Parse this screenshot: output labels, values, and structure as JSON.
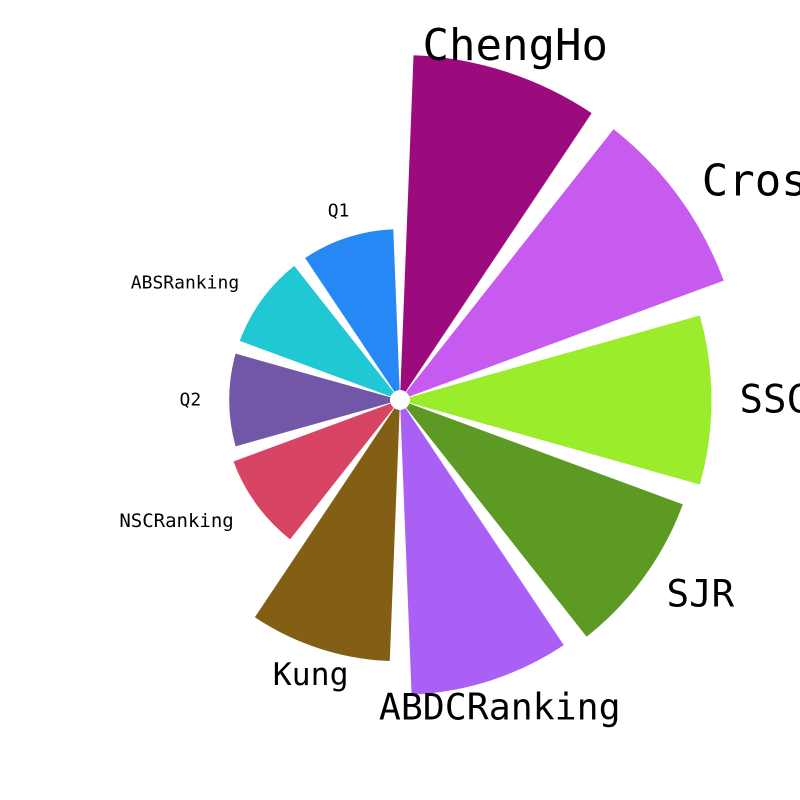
{
  "chart_data": {
    "type": "bar",
    "subtype": "polar",
    "title": "",
    "xlabel": "",
    "ylabel": "",
    "categories": [
      "ChengHo",
      "CrossRef",
      "SSCI",
      "SJR",
      "ABDCRanking",
      "Kung",
      "NSCRanking",
      "Q2",
      "ABSRanking",
      "Q1"
    ],
    "values": [
      100,
      100,
      90,
      87,
      85,
      75,
      50,
      48,
      48,
      48
    ],
    "colors": [
      "#9b0b7e",
      "#c75bf0",
      "#9bed2b",
      "#5c9a24",
      "#aa60f5",
      "#835f16",
      "#d84564",
      "#7256a8",
      "#1fc8d3",
      "#2588f5"
    ],
    "ylim": [
      0,
      100
    ],
    "grid": false,
    "legend": "none"
  }
}
